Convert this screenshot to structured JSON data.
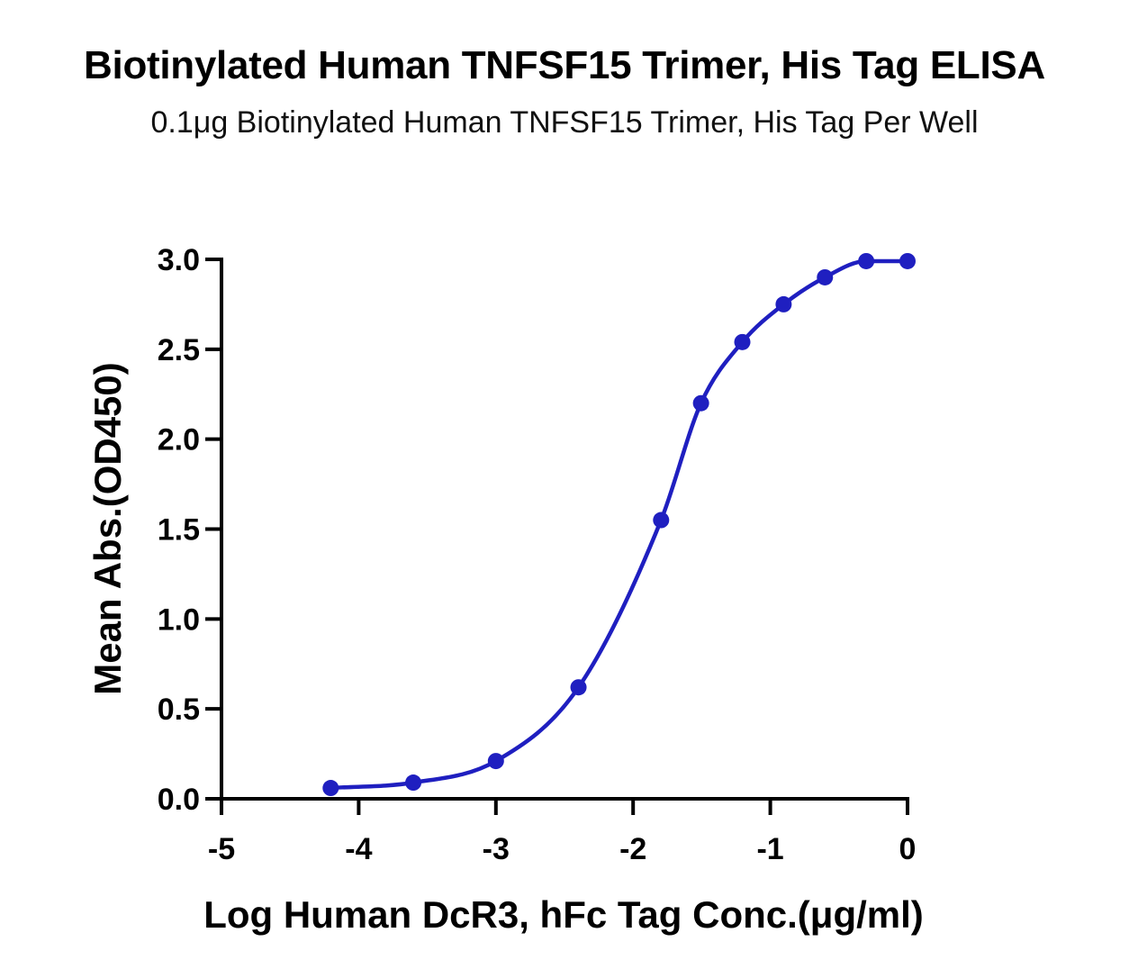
{
  "chart_data": {
    "type": "line",
    "title": "Biotinylated Human TNFSF15 Trimer, His Tag ELISA",
    "subtitle": "0.1μg Biotinylated Human TNFSF15 Trimer, His Tag Per Well",
    "xlabel": "Log Human DcR3, hFc Tag Conc.(μg/ml)",
    "ylabel": "Mean Abs.(OD450)",
    "xlim": [
      -5,
      0
    ],
    "ylim": [
      0,
      3.0
    ],
    "x_ticks": [
      "-5",
      "-4",
      "-3",
      "-2",
      "-1",
      "0"
    ],
    "y_ticks": [
      "0.0",
      "0.5",
      "1.0",
      "1.5",
      "2.0",
      "2.5",
      "3.0"
    ],
    "grid": false,
    "color": "#1f1fc0",
    "series": [
      {
        "x": [
          -4.204,
          -3.602,
          -3.0,
          -2.398,
          -1.796,
          -1.505,
          -1.204,
          -0.903,
          -0.602,
          -0.301,
          0.0
        ],
        "y": [
          0.06,
          0.09,
          0.21,
          0.62,
          1.55,
          2.2,
          2.54,
          2.75,
          2.9,
          2.99,
          2.99
        ]
      }
    ]
  }
}
